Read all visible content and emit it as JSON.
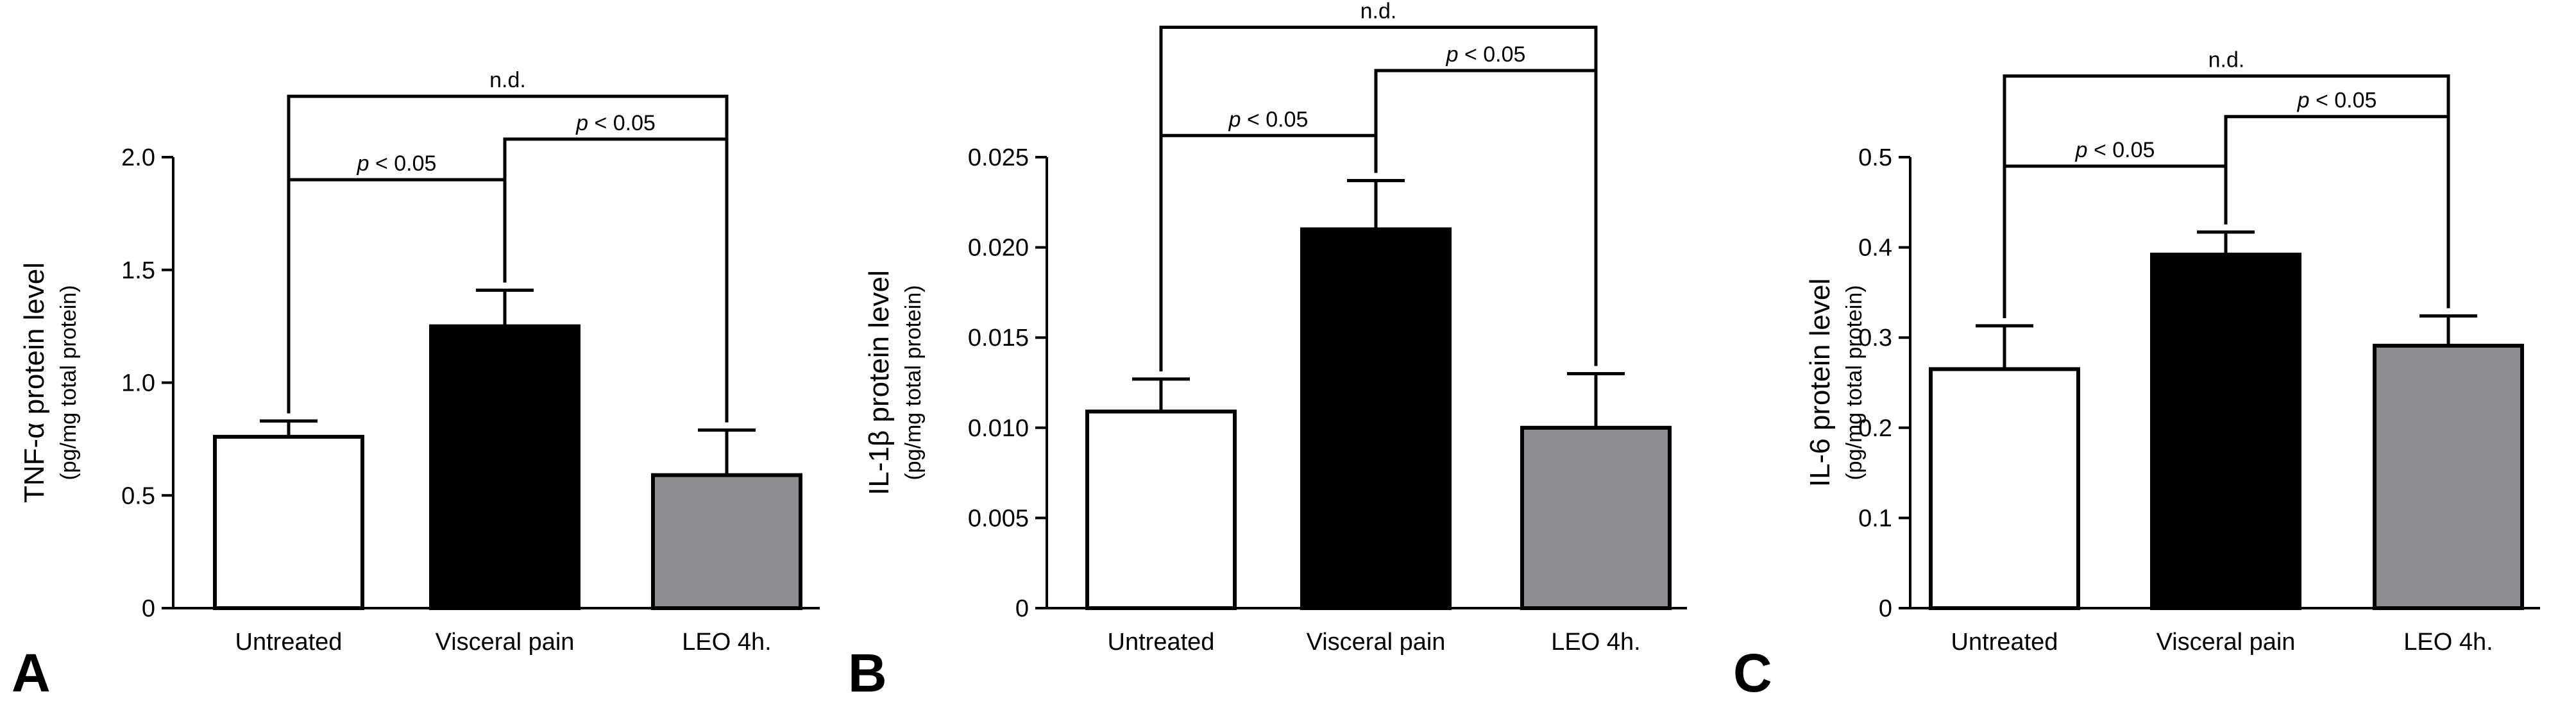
{
  "figure": {
    "background": "#ffffff",
    "axis_color": "#000000"
  },
  "chart_data": [
    {
      "type": "bar",
      "panel": "A",
      "categories": [
        "Untreated",
        "Visceral pain",
        "LEO 4h."
      ],
      "values": [
        0.76,
        1.25,
        0.59
      ],
      "error": [
        0.07,
        0.16,
        0.2
      ],
      "colors": [
        "#ffffff",
        "#000000",
        "#8e8e92"
      ],
      "ylabel": "TNF-α protein level",
      "ylabel_sub": "(pg/mg total protein)",
      "ylim": [
        0,
        2.0
      ],
      "yticks": [
        0,
        0.5,
        1.0,
        1.5,
        2.0
      ],
      "ytick_labels": [
        "0",
        "0.5",
        "1.0",
        "1.5",
        "2.0"
      ],
      "comparisons": [
        {
          "from": 0,
          "to": 1,
          "label_italic": "p",
          "label_rest": " < 0.05",
          "level": 1.9
        },
        {
          "from": 1,
          "to": 2,
          "label_italic": "p",
          "label_rest": " < 0.05",
          "level": 2.08
        },
        {
          "from": 0,
          "to": 2,
          "label_italic": "",
          "label_rest": "n.d.",
          "level": 2.27
        }
      ]
    },
    {
      "type": "bar",
      "panel": "B",
      "categories": [
        "Untreated",
        "Visceral pain",
        "LEO 4h."
      ],
      "values": [
        0.0109,
        0.021,
        0.01
      ],
      "error": [
        0.0018,
        0.0027,
        0.003
      ],
      "colors": [
        "#ffffff",
        "#000000",
        "#8e8e92"
      ],
      "ylabel": "IL-1β protein level",
      "ylabel_sub": "(pg/mg total protein)",
      "ylim": [
        0,
        0.025
      ],
      "yticks": [
        0,
        0.005,
        0.01,
        0.015,
        0.02,
        0.025
      ],
      "ytick_labels": [
        "0",
        "0.005",
        "0.010",
        "0.015",
        "0.020",
        "0.025"
      ],
      "comparisons": [
        {
          "from": 0,
          "to": 1,
          "label_italic": "p",
          "label_rest": " < 0.05",
          "level": 0.0262
        },
        {
          "from": 1,
          "to": 2,
          "label_italic": "p",
          "label_rest": " < 0.05",
          "level": 0.0298
        },
        {
          "from": 0,
          "to": 2,
          "label_italic": "",
          "label_rest": "n.d.",
          "level": 0.0322
        }
      ]
    },
    {
      "type": "bar",
      "panel": "C",
      "categories": [
        "Untreated",
        "Visceral pain",
        "LEO 4h."
      ],
      "values": [
        0.265,
        0.392,
        0.291
      ],
      "error": [
        0.048,
        0.025,
        0.033
      ],
      "colors": [
        "#ffffff",
        "#000000",
        "#8e8e92"
      ],
      "ylabel": "IL-6 protein level",
      "ylabel_sub": "(pg/mg total protein)",
      "ylim": [
        0,
        0.5
      ],
      "yticks": [
        0,
        0.1,
        0.2,
        0.3,
        0.4,
        0.5
      ],
      "ytick_labels": [
        "0",
        "0.1",
        "0.2",
        "0.3",
        "0.4",
        "0.5"
      ],
      "comparisons": [
        {
          "from": 0,
          "to": 1,
          "label_italic": "p",
          "label_rest": " < 0.05",
          "level": 0.49
        },
        {
          "from": 1,
          "to": 2,
          "label_italic": "p",
          "label_rest": " < 0.05",
          "level": 0.545
        },
        {
          "from": 0,
          "to": 2,
          "label_italic": "",
          "label_rest": "n.d.",
          "level": 0.59
        }
      ]
    }
  ]
}
